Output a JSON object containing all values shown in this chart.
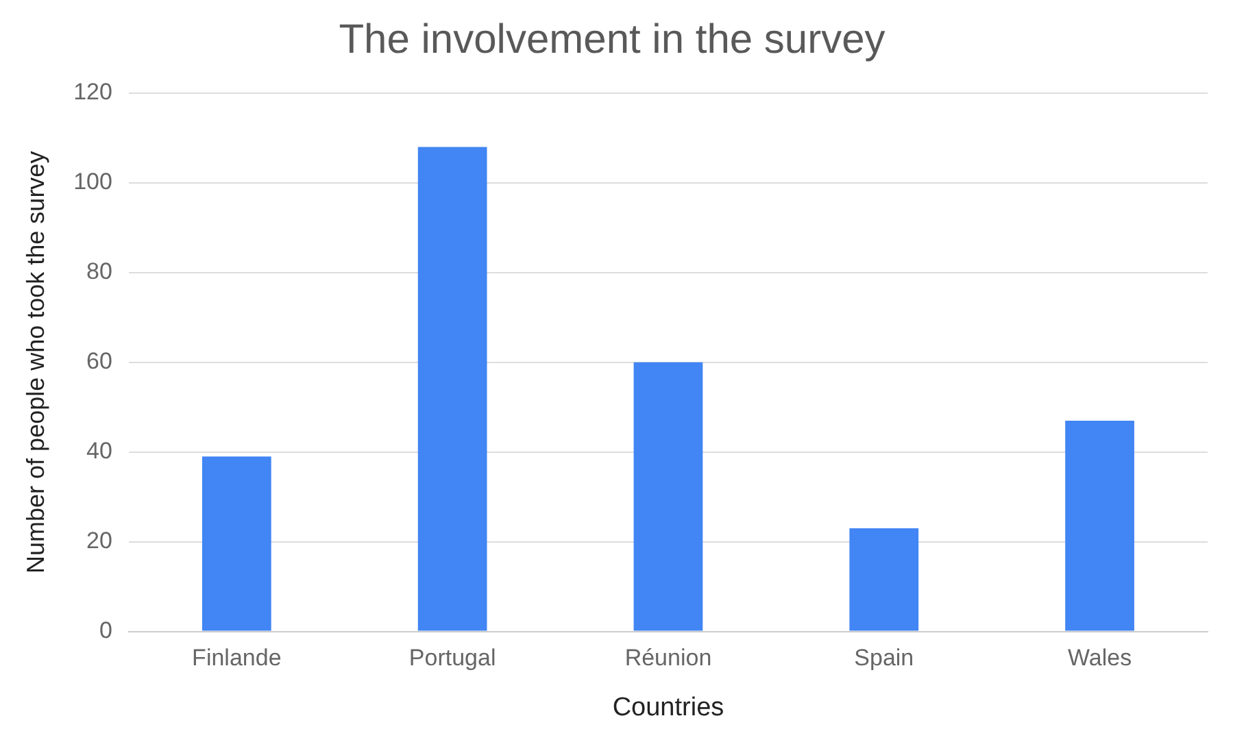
{
  "chart_data": {
    "type": "bar",
    "title": "The involvement in the survey",
    "xlabel": "Countries",
    "ylabel": "Number of people who took the survey",
    "categories": [
      "Finlande",
      "Portugal",
      "Réunion",
      "Spain",
      "Wales"
    ],
    "values": [
      39,
      108,
      60,
      23,
      47
    ],
    "color": "#4285f4",
    "ylim": [
      0,
      120
    ],
    "yticks": [
      0,
      20,
      40,
      60,
      80,
      100,
      120
    ],
    "grid": "y",
    "legend": false
  }
}
